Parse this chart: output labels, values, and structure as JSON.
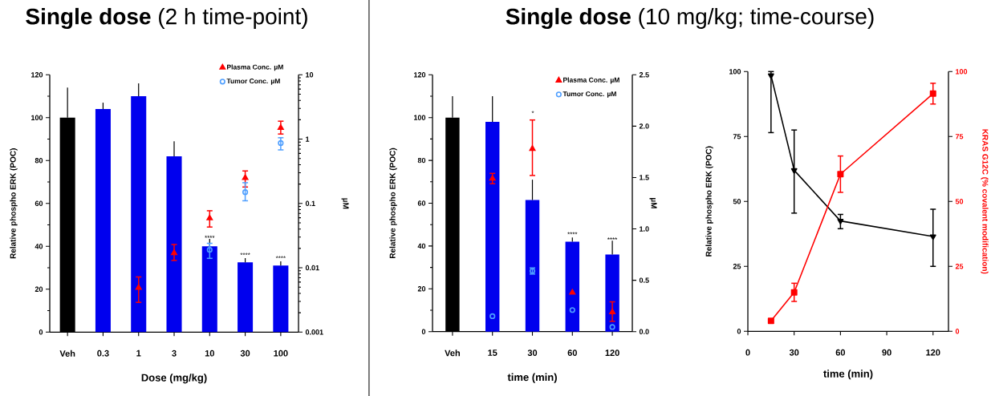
{
  "chart_data": [
    {
      "type": "bar",
      "title": "**Single dose** (2 h time-point)",
      "xlabel": "Dose (mg/kg)",
      "ylabel": "Relative phospho ERK (POC)",
      "y2label": "µM",
      "categories": [
        "Veh",
        "0.3",
        "1",
        "3",
        "10",
        "30",
        "100"
      ],
      "series": [
        {
          "type": "bar",
          "colors": [
            "#000000",
            "#0000ee",
            "#0000ee",
            "#0000ee",
            "#0000ee",
            "#0000ee",
            "#0000ee"
          ],
          "values": [
            100,
            104,
            110,
            82,
            40,
            32.5,
            31
          ],
          "errors": [
            [
              100,
              114
            ],
            [
              104,
              107
            ],
            [
              110,
              116
            ],
            [
              82,
              89
            ],
            [
              40,
              43.5
            ],
            [
              32.5,
              34.5
            ],
            [
              31,
              33
            ]
          ]
        },
        {
          "type": "scatter",
          "name": "Plasma Conc. µM",
          "color": "#ff0000",
          "marker": "triangle",
          "axis": "y2",
          "x": [
            "Veh",
            "0.3",
            "1",
            "3",
            "10",
            "30",
            "100"
          ],
          "values": [
            null,
            null,
            0.0049,
            0.017,
            0.059,
            0.25,
            1.5
          ],
          "errors": [
            null,
            null,
            [
              0.0029,
              0.0072
            ],
            [
              0.013,
              0.023
            ],
            [
              0.043,
              0.077
            ],
            [
              0.18,
              0.32
            ],
            [
              1.2,
              1.9
            ]
          ]
        },
        {
          "type": "scatter",
          "name": "Tumor Conc. µM",
          "color": "#4f9fff",
          "marker": "circle",
          "axis": "y2",
          "x": [
            "Veh",
            "0.3",
            "1",
            "3",
            "10",
            "30",
            "100"
          ],
          "values": [
            null,
            null,
            null,
            null,
            0.019,
            0.15,
            0.87
          ],
          "errors": [
            null,
            null,
            null,
            null,
            [
              0.014,
              0.024
            ],
            [
              0.11,
              0.21
            ],
            [
              0.68,
              1.05
            ]
          ]
        }
      ],
      "ylim": [
        0,
        120
      ],
      "yticks": [
        0,
        {
          "value": 10,
          "label": null
        },
        20,
        {
          "value": 30,
          "label": null
        },
        40,
        {
          "value": 50,
          "label": null
        },
        60,
        {
          "value": 70,
          "label": null
        },
        80,
        {
          "value": 90,
          "label": null
        },
        100,
        {
          "value": 110,
          "label": null
        },
        120
      ],
      "y2lim": [
        0.001,
        10
      ],
      "y2ticks": [
        0.001,
        0.01,
        0.1,
        1,
        10
      ],
      "log": "y2",
      "legend": "top right",
      "annotations": [
        {
          "text": "****",
          "x": "10",
          "y": 44
        },
        {
          "text": "****",
          "x": "30",
          "y": 36
        },
        {
          "text": "****",
          "x": "100",
          "y": 34.5
        }
      ]
    },
    {
      "type": "bar",
      "title": "**Single dose** (10 mg/kg; time-course)",
      "xlabel": "time (min)",
      "ylabel": "Relative phospho ERK (POC)",
      "y2label": "µM",
      "categories": [
        "Veh",
        "15",
        "30",
        "60",
        "120"
      ],
      "series": [
        {
          "type": "bar",
          "colors": [
            "#000000",
            "#0000ee",
            "#0000ee",
            "#0000ee",
            "#0000ee"
          ],
          "values": [
            100,
            98,
            61.5,
            42,
            36
          ],
          "errors": [
            [
              100,
              110
            ],
            [
              98,
              110
            ],
            [
              61.5,
              71
            ],
            [
              42,
              44
            ],
            [
              36,
              42.5
            ]
          ]
        },
        {
          "type": "scatter",
          "name": "Plasma Conc. µM",
          "color": "#ff0000",
          "marker": "triangle",
          "axis": "y2",
          "x": [
            "Veh",
            "15",
            "30",
            "60",
            "120"
          ],
          "values": [
            null,
            1.49,
            1.78,
            0.38,
            0.19
          ],
          "errors": [
            null,
            [
              1.44,
              1.54
            ],
            [
              1.52,
              2.06
            ],
            null,
            [
              0.1,
              0.29
            ]
          ]
        },
        {
          "type": "scatter",
          "name": "Tumor Conc. µM",
          "color": "#4f9fff",
          "marker": "circle",
          "axis": "y2",
          "x": [
            "Veh",
            "15",
            "30",
            "60",
            "120"
          ],
          "values": [
            null,
            0.15,
            0.59,
            0.21,
            0.045
          ],
          "errors": [
            null,
            null,
            [
              0.56,
              0.62
            ],
            null,
            null
          ]
        }
      ],
      "ylim": [
        0,
        120
      ],
      "yticks": [
        0,
        {
          "value": 10,
          "label": null
        },
        20,
        {
          "value": 30,
          "label": null
        },
        40,
        {
          "value": 50,
          "label": null
        },
        60,
        {
          "value": 70,
          "label": null
        },
        80,
        {
          "value": 90,
          "label": null
        },
        100,
        {
          "value": 110,
          "label": null
        },
        120
      ],
      "y2lim": [
        0,
        2.5
      ],
      "y2ticks": [
        {
          "value": 0,
          "label": "0.0"
        },
        {
          "value": 0.5,
          "label": "0.5"
        },
        {
          "value": 1,
          "label": "1.0"
        },
        {
          "value": 1.5,
          "label": "1.5"
        },
        {
          "value": 2,
          "label": "2.0"
        },
        {
          "value": 2.5,
          "label": "2.5"
        }
      ],
      "legend": "top right",
      "annotations": [
        "*",
        {
          "text": "****",
          "x": "60",
          "y": 45.5
        },
        {
          "text": "****",
          "x": "120",
          "y": 43
        }
      ]
    },
    {
      "type": "line",
      "xlabel": "time (min)",
      "ylabel": "Relative phospho ERK (POC)",
      "y2label": "KRAS G12C (% covalent modification)",
      "series": [
        {
          "color": "#000000",
          "marker": "triangle",
          "x": [
            15,
            30,
            60,
            120
          ],
          "values": [
            98.5,
            62,
            42.5,
            36.5
          ],
          "errors": [
            [
              76.5,
              100
            ],
            [
              45.5,
              77.5
            ],
            [
              39.5,
              45
            ],
            [
              25,
              47
            ]
          ]
        },
        {
          "color": "#ff0000",
          "marker": "square",
          "axis": "y2",
          "x": [
            15,
            30,
            60,
            120
          ],
          "values": [
            4,
            15,
            60.5,
            91.5
          ],
          "errors": [
            null,
            [
              11.5,
              18.5
            ],
            [
              53.5,
              67.5
            ],
            [
              87.5,
              95.5
            ]
          ]
        }
      ],
      "xlim": [
        0,
        130
      ],
      "xticks": [
        0,
        30,
        60,
        90,
        120
      ],
      "ylim": [
        0,
        100
      ],
      "yticks": [
        0,
        25,
        50,
        75,
        100
      ],
      "y2lim": [
        0,
        100
      ],
      "y2ticks": [
        0,
        25,
        50,
        75,
        100
      ],
      "line_style": "solid"
    }
  ]
}
